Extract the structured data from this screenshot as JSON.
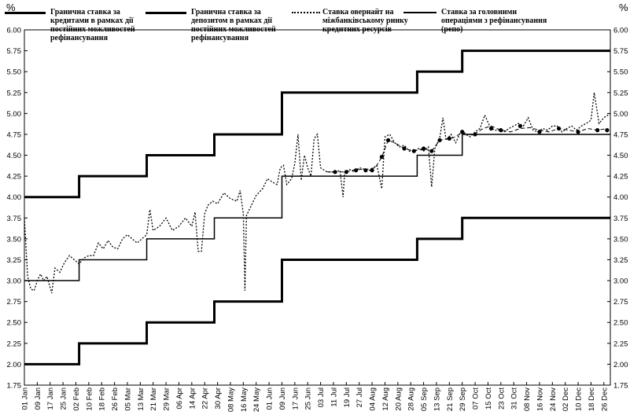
{
  "chart_data": {
    "type": "line",
    "unit_label_left": "%",
    "unit_label_right": "%",
    "y_ticks": [
      "6.00",
      "5.75",
      "5.50",
      "5.25",
      "5.00",
      "4.75",
      "4.50",
      "4.25",
      "4.00",
      "3.75",
      "3.50",
      "3.25",
      "3.00",
      "2.75",
      "2.50",
      "2.25",
      "2.00",
      "1.75"
    ],
    "ylim": [
      1.75,
      6.0
    ],
    "x_ticks": [
      "01 Jan",
      "09 Jan",
      "17 Jan",
      "25 Jan",
      "02 Feb",
      "10 Feb",
      "18 Feb",
      "26 Feb",
      "05 Mar",
      "13 Mar",
      "21 Mar",
      "29 Mar",
      "06 Apr",
      "14 Apr",
      "22 Apr",
      "30 Apr",
      "08 May",
      "16 May",
      "24 May",
      "01 Jun",
      "09 Jun",
      "17 Jun",
      "25 Jun",
      "03 Jul",
      "11 Jul",
      "19 Jul",
      "27 Jul",
      "04 Aug",
      "12 Aug",
      "20 Aug",
      "28 Aug",
      "05 Sep",
      "13 Sep",
      "21 Sep",
      "29 Sep",
      "07 Oct",
      "15 Oct",
      "23 Oct",
      "31 Oct",
      "08 Nov",
      "16 Nov",
      "24 Nov",
      "02 Dec",
      "10 Dec",
      "18 Dec",
      "26 Dec"
    ],
    "x_range_days": [
      0,
      364
    ],
    "series": [
      {
        "name": "Гранична ставка за кредитами в рамках дії постійних можливостей рефінансування",
        "style": "thick-solid",
        "color": "#000000",
        "steps": [
          [
            0,
            4.0
          ],
          [
            34,
            4.25
          ],
          [
            76,
            4.5
          ],
          [
            118,
            4.75
          ],
          [
            160,
            5.25
          ],
          [
            244,
            5.5
          ],
          [
            272,
            5.75
          ],
          [
            364,
            5.75
          ]
        ]
      },
      {
        "name": "Гранична ставка за депозитом в рамках дії постійних можливостей рефінансування",
        "style": "thick-solid",
        "color": "#000000",
        "steps": [
          [
            0,
            2.0
          ],
          [
            34,
            2.25
          ],
          [
            76,
            2.5
          ],
          [
            118,
            2.75
          ],
          [
            160,
            3.25
          ],
          [
            244,
            3.5
          ],
          [
            272,
            3.75
          ],
          [
            364,
            3.75
          ]
        ]
      },
      {
        "name": "Ставка овернайт на міжбанківському ринку кредитних ресурсів",
        "style": "dotted",
        "color": "#000000",
        "points": [
          [
            0,
            3.75
          ],
          [
            2,
            3.05
          ],
          [
            4,
            2.9
          ],
          [
            6,
            2.88
          ],
          [
            8,
            3.0
          ],
          [
            10,
            3.08
          ],
          [
            12,
            3.0
          ],
          [
            14,
            3.05
          ],
          [
            16,
            2.92
          ],
          [
            17,
            2.85
          ],
          [
            19,
            3.15
          ],
          [
            22,
            3.1
          ],
          [
            25,
            3.22
          ],
          [
            28,
            3.3
          ],
          [
            31,
            3.25
          ],
          [
            34,
            3.2
          ],
          [
            37,
            3.27
          ],
          [
            40,
            3.3
          ],
          [
            43,
            3.3
          ],
          [
            46,
            3.45
          ],
          [
            49,
            3.38
          ],
          [
            52,
            3.48
          ],
          [
            55,
            3.4
          ],
          [
            58,
            3.38
          ],
          [
            61,
            3.5
          ],
          [
            64,
            3.55
          ],
          [
            67,
            3.5
          ],
          [
            70,
            3.45
          ],
          [
            73,
            3.5
          ],
          [
            76,
            3.55
          ],
          [
            78,
            3.85
          ],
          [
            80,
            3.6
          ],
          [
            84,
            3.65
          ],
          [
            88,
            3.75
          ],
          [
            92,
            3.6
          ],
          [
            96,
            3.65
          ],
          [
            100,
            3.75
          ],
          [
            104,
            3.65
          ],
          [
            106,
            3.82
          ],
          [
            108,
            3.35
          ],
          [
            110,
            3.35
          ],
          [
            112,
            3.8
          ],
          [
            114,
            3.9
          ],
          [
            117,
            3.95
          ],
          [
            120,
            3.92
          ],
          [
            124,
            4.05
          ],
          [
            128,
            3.98
          ],
          [
            132,
            3.95
          ],
          [
            134,
            4.08
          ],
          [
            136,
            3.8
          ],
          [
            137,
            2.88
          ],
          [
            138,
            3.78
          ],
          [
            141,
            3.9
          ],
          [
            144,
            4.02
          ],
          [
            148,
            4.1
          ],
          [
            151,
            4.22
          ],
          [
            154,
            4.18
          ],
          [
            157,
            4.15
          ],
          [
            159,
            4.35
          ],
          [
            161,
            4.38
          ],
          [
            163,
            4.15
          ],
          [
            166,
            4.22
          ],
          [
            168,
            4.4
          ],
          [
            170,
            4.75
          ],
          [
            172,
            4.2
          ],
          [
            174,
            4.5
          ],
          [
            176,
            4.35
          ],
          [
            178,
            4.25
          ],
          [
            180,
            4.7
          ],
          [
            182,
            4.75
          ],
          [
            184,
            4.35
          ],
          [
            188,
            4.3
          ],
          [
            191,
            4.3
          ],
          [
            194,
            4.3
          ],
          [
            196,
            4.32
          ],
          [
            198,
            4.0
          ],
          [
            199,
            4.3
          ],
          [
            202,
            4.33
          ],
          [
            205,
            4.3
          ],
          [
            208,
            4.35
          ],
          [
            212,
            4.33
          ],
          [
            215,
            4.32
          ],
          [
            219,
            4.38
          ],
          [
            222,
            4.1
          ],
          [
            224,
            4.72
          ],
          [
            227,
            4.75
          ],
          [
            230,
            4.65
          ],
          [
            233,
            4.6
          ],
          [
            236,
            4.62
          ],
          [
            239,
            4.55
          ],
          [
            242,
            4.55
          ],
          [
            245,
            4.58
          ],
          [
            248,
            4.55
          ],
          [
            251,
            4.6
          ],
          [
            253,
            4.12
          ],
          [
            255,
            4.58
          ],
          [
            258,
            4.7
          ],
          [
            260,
            4.95
          ],
          [
            262,
            4.68
          ],
          [
            265,
            4.75
          ],
          [
            268,
            4.65
          ],
          [
            271,
            4.78
          ],
          [
            274,
            4.75
          ],
          [
            277,
            4.72
          ],
          [
            280,
            4.78
          ],
          [
            283,
            4.82
          ],
          [
            286,
            4.98
          ],
          [
            289,
            4.85
          ],
          [
            292,
            4.8
          ],
          [
            295,
            4.8
          ],
          [
            298,
            4.78
          ],
          [
            301,
            4.82
          ],
          [
            304,
            4.85
          ],
          [
            307,
            4.88
          ],
          [
            310,
            4.85
          ],
          [
            313,
            4.95
          ],
          [
            316,
            4.8
          ],
          [
            319,
            4.78
          ],
          [
            322,
            4.82
          ],
          [
            325,
            4.8
          ],
          [
            328,
            4.85
          ],
          [
            331,
            4.85
          ],
          [
            334,
            4.78
          ],
          [
            337,
            4.82
          ],
          [
            340,
            4.85
          ],
          [
            343,
            4.8
          ],
          [
            346,
            4.85
          ],
          [
            349,
            4.88
          ],
          [
            352,
            4.92
          ],
          [
            354,
            5.25
          ],
          [
            357,
            4.88
          ],
          [
            360,
            4.95
          ],
          [
            364,
            5.0
          ]
        ]
      },
      {
        "name": "Ставка за головними операціями з рефінансування (репо)",
        "style": "solid",
        "color": "#000000",
        "steps": [
          [
            0,
            3.0
          ],
          [
            34,
            3.25
          ],
          [
            76,
            3.5
          ],
          [
            118,
            3.75
          ],
          [
            160,
            4.25
          ],
          [
            244,
            4.5
          ],
          [
            272,
            4.75
          ],
          [
            364,
            4.75
          ]
        ]
      },
      {
        "name": "",
        "style": "dashed-with-markers",
        "color": "#000000",
        "points": [
          [
            188,
            4.3
          ],
          [
            194,
            4.3
          ],
          [
            200,
            4.3
          ],
          [
            206,
            4.33
          ],
          [
            212,
            4.33
          ],
          [
            218,
            4.35
          ],
          [
            222,
            4.48
          ],
          [
            226,
            4.68
          ],
          [
            230,
            4.65
          ],
          [
            236,
            4.58
          ],
          [
            242,
            4.55
          ],
          [
            248,
            4.58
          ],
          [
            253,
            4.55
          ],
          [
            258,
            4.68
          ],
          [
            264,
            4.7
          ],
          [
            268,
            4.72
          ],
          [
            272,
            4.78
          ],
          [
            276,
            4.75
          ],
          [
            280,
            4.76
          ],
          [
            285,
            4.82
          ],
          [
            290,
            4.85
          ],
          [
            296,
            4.8
          ],
          [
            302,
            4.78
          ],
          [
            308,
            4.82
          ],
          [
            314,
            4.83
          ],
          [
            320,
            4.8
          ],
          [
            326,
            4.78
          ],
          [
            332,
            4.82
          ],
          [
            338,
            4.8
          ],
          [
            344,
            4.78
          ],
          [
            350,
            4.82
          ],
          [
            356,
            4.8
          ],
          [
            362,
            4.82
          ]
        ],
        "markers": [
          [
            216,
            4.32
          ],
          [
            222,
            4.48
          ],
          [
            226,
            4.68
          ],
          [
            236,
            4.58
          ],
          [
            242,
            4.55
          ],
          [
            248,
            4.58
          ],
          [
            253,
            4.55
          ],
          [
            258,
            4.68
          ],
          [
            264,
            4.7
          ],
          [
            272,
            4.78
          ],
          [
            280,
            4.75
          ],
          [
            290,
            4.82
          ],
          [
            296,
            4.8
          ],
          [
            308,
            4.85
          ],
          [
            320,
            4.78
          ],
          [
            332,
            4.82
          ],
          [
            344,
            4.78
          ],
          [
            356,
            4.8
          ],
          [
            362,
            4.8
          ],
          [
            193,
            4.3
          ],
          [
            200,
            4.3
          ],
          [
            206,
            4.32
          ],
          [
            212,
            4.32
          ]
        ]
      }
    ]
  },
  "legend": [
    {
      "text": "Гранична ставка за кредитами в рамках дії постійних можливостей рефінансування",
      "style": "thick-solid"
    },
    {
      "text": "Гранична ставка за депозитом в рамках дії постійних можливостей рефінансування",
      "style": "thick-solid"
    },
    {
      "text": "Ставка овернайт на міжбанківському ринку кредитних ресурсів",
      "style": "dotted"
    },
    {
      "text": "Ставка за головними операціями з рефінансування (репо)",
      "style": "solid"
    }
  ]
}
